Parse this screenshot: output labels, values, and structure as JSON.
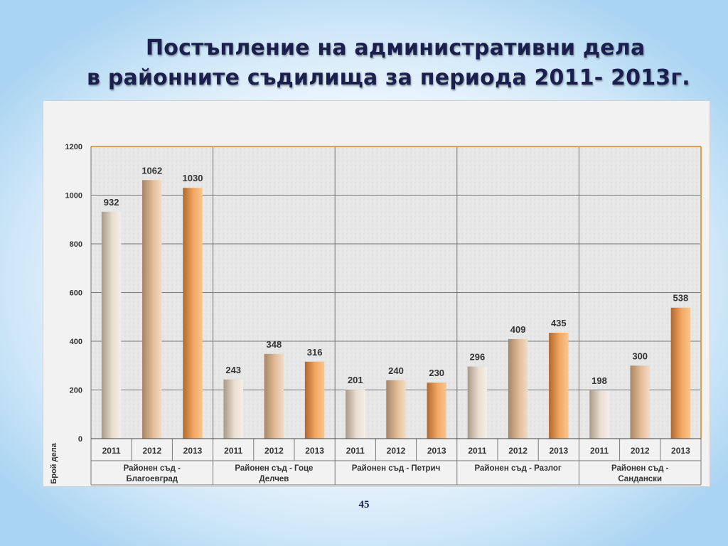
{
  "slide": {
    "title_line1": "Постъпление на административни дела",
    "title_line2": "в районните съдилища за периода 2011- 2013г.",
    "page_number": "45"
  },
  "colors": {
    "title": "#1b1f4d",
    "plot_background": "#e6e6e6",
    "gridline": "#777777",
    "plot_border": "#d9a05a",
    "bar_2011": "#c8b8a6",
    "bar_2012": "#d6a781",
    "bar_2013": "#e99d55"
  },
  "chart_data": {
    "type": "bar",
    "title": "",
    "ylabel": "Брой дела",
    "xlabel": "",
    "ylim": [
      0,
      1200
    ],
    "yticks": [
      "0",
      "200",
      "400",
      "600",
      "800",
      "1000",
      "1200"
    ],
    "grid": true,
    "legend": "none",
    "groups": [
      {
        "name": "Районен съд - Благоевград",
        "years": [
          "2011",
          "2012",
          "2013"
        ],
        "values": [
          932,
          1062,
          1030
        ]
      },
      {
        "name": "Районен съд - Гоце Делчев",
        "years": [
          "2011",
          "2012",
          "2013"
        ],
        "values": [
          243,
          348,
          316
        ]
      },
      {
        "name": "Районен съд - Петрич",
        "years": [
          "2011",
          "2012",
          "2013"
        ],
        "values": [
          201,
          240,
          230
        ]
      },
      {
        "name": "Районен съд - Разлог",
        "years": [
          "2011",
          "2012",
          "2013"
        ],
        "values": [
          296,
          409,
          435
        ]
      },
      {
        "name": "Районен съд - Сандански",
        "years": [
          "2011",
          "2012",
          "2013"
        ],
        "values": [
          198,
          300,
          538
        ]
      }
    ]
  }
}
